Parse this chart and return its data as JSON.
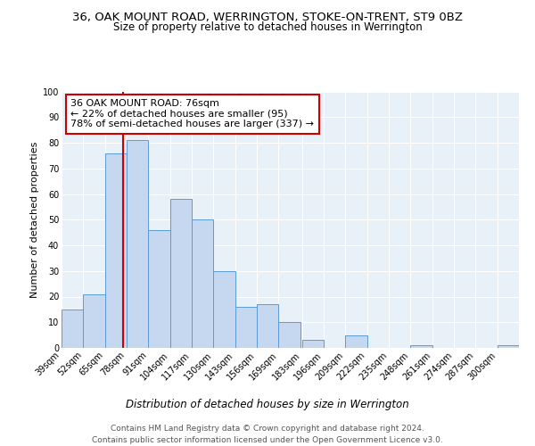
{
  "title": "36, OAK MOUNT ROAD, WERRINGTON, STOKE-ON-TRENT, ST9 0BZ",
  "subtitle": "Size of property relative to detached houses in Werrington",
  "xlabel": "Distribution of detached houses by size in Werrington",
  "ylabel": "Number of detached properties",
  "bin_labels": [
    "39sqm",
    "52sqm",
    "65sqm",
    "78sqm",
    "91sqm",
    "104sqm",
    "117sqm",
    "130sqm",
    "143sqm",
    "156sqm",
    "169sqm",
    "183sqm",
    "196sqm",
    "209sqm",
    "222sqm",
    "235sqm",
    "248sqm",
    "261sqm",
    "274sqm",
    "287sqm",
    "300sqm"
  ],
  "bar_values": [
    15,
    21,
    76,
    81,
    46,
    58,
    50,
    30,
    16,
    17,
    10,
    3,
    0,
    5,
    0,
    0,
    1,
    0,
    0,
    0,
    1
  ],
  "bin_edges": [
    39,
    52,
    65,
    78,
    91,
    104,
    117,
    130,
    143,
    156,
    169,
    183,
    196,
    209,
    222,
    235,
    248,
    261,
    274,
    287,
    300
  ],
  "bar_color": "#c5d8f0",
  "bar_edge_color": "#5b9bd5",
  "vline_x": 76,
  "vline_color": "#cc0000",
  "annotation_line1": "36 OAK MOUNT ROAD: 76sqm",
  "annotation_line2": "← 22% of detached houses are smaller (95)",
  "annotation_line3": "78% of semi-detached houses are larger (337) →",
  "annotation_box_color": "#ffffff",
  "annotation_box_edge": "#cc0000",
  "footer_line1": "Contains HM Land Registry data © Crown copyright and database right 2024.",
  "footer_line2": "Contains public sector information licensed under the Open Government Licence v3.0.",
  "ylim": [
    0,
    100
  ],
  "yticks": [
    0,
    10,
    20,
    30,
    40,
    50,
    60,
    70,
    80,
    90,
    100
  ],
  "bg_color": "#e8f0f8",
  "fig_bg_color": "#ffffff",
  "grid_color": "#ffffff",
  "title_fontsize": 9.5,
  "subtitle_fontsize": 8.5,
  "xlabel_fontsize": 8.5,
  "ylabel_fontsize": 8.0,
  "tick_fontsize": 7.0,
  "annotation_fontsize": 8.0,
  "footer_fontsize": 6.5
}
